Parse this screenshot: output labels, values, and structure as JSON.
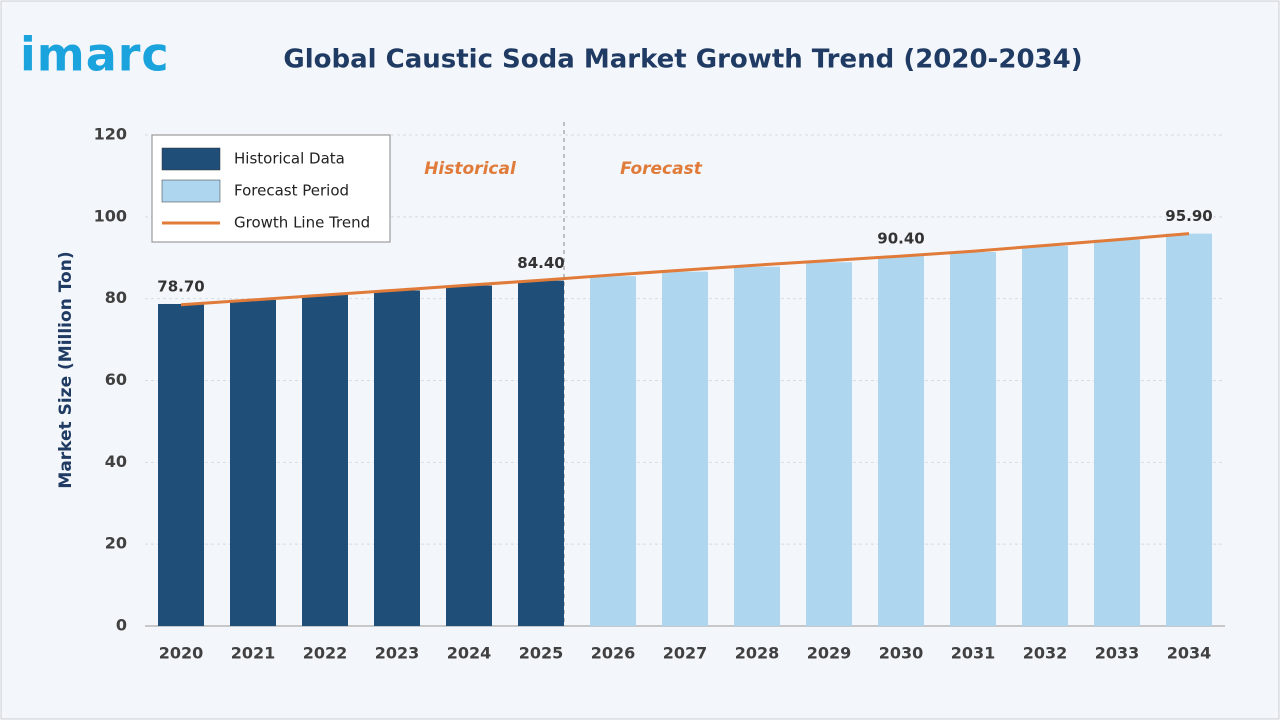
{
  "logo": "imarc",
  "chart_data": {
    "type": "bar",
    "title": "Global Caustic Soda Market Growth Trend (2020-2034)",
    "y_label": "Market Size (Million Ton)",
    "categories": [
      "2020",
      "2021",
      "2022",
      "2023",
      "2024",
      "2025",
      "2026",
      "2027",
      "2028",
      "2029",
      "2030",
      "2031",
      "2032",
      "2033",
      "2034"
    ],
    "series": [
      {
        "name": "Historical Data",
        "type": "bar",
        "color": "#1f4e79",
        "values": [
          78.7,
          79.7,
          80.9,
          82.0,
          83.2,
          84.4,
          null,
          null,
          null,
          null,
          null,
          null,
          null,
          null,
          null
        ],
        "value_labels": [
          "78.70",
          null,
          null,
          null,
          null,
          "84.40",
          null,
          null,
          null,
          null,
          null,
          null,
          null,
          null,
          null
        ]
      },
      {
        "name": "Forecast Period",
        "type": "bar",
        "color": "#aed6ef",
        "values": [
          null,
          null,
          null,
          null,
          null,
          null,
          85.5,
          86.6,
          87.8,
          88.9,
          90.4,
          91.4,
          92.9,
          94.4,
          95.9
        ],
        "value_labels": [
          null,
          null,
          null,
          null,
          null,
          null,
          null,
          null,
          null,
          null,
          "90.40",
          null,
          null,
          null,
          "95.90"
        ]
      },
      {
        "name": "Growth Line Trend",
        "type": "line",
        "color": "#e07b39",
        "values": [
          78.5,
          79.7,
          80.9,
          82.1,
          83.3,
          84.5,
          85.8,
          87.0,
          88.2,
          89.3,
          90.4,
          91.6,
          93.0,
          94.4,
          95.9
        ]
      }
    ],
    "annotations": [
      "Historical",
      "Forecast"
    ],
    "annotation_color": "#e07b39",
    "ylim": [
      0,
      120
    ],
    "yticks": [
      0,
      20,
      40,
      60,
      80,
      100,
      120
    ],
    "grid": true,
    "legend": "upper left"
  }
}
